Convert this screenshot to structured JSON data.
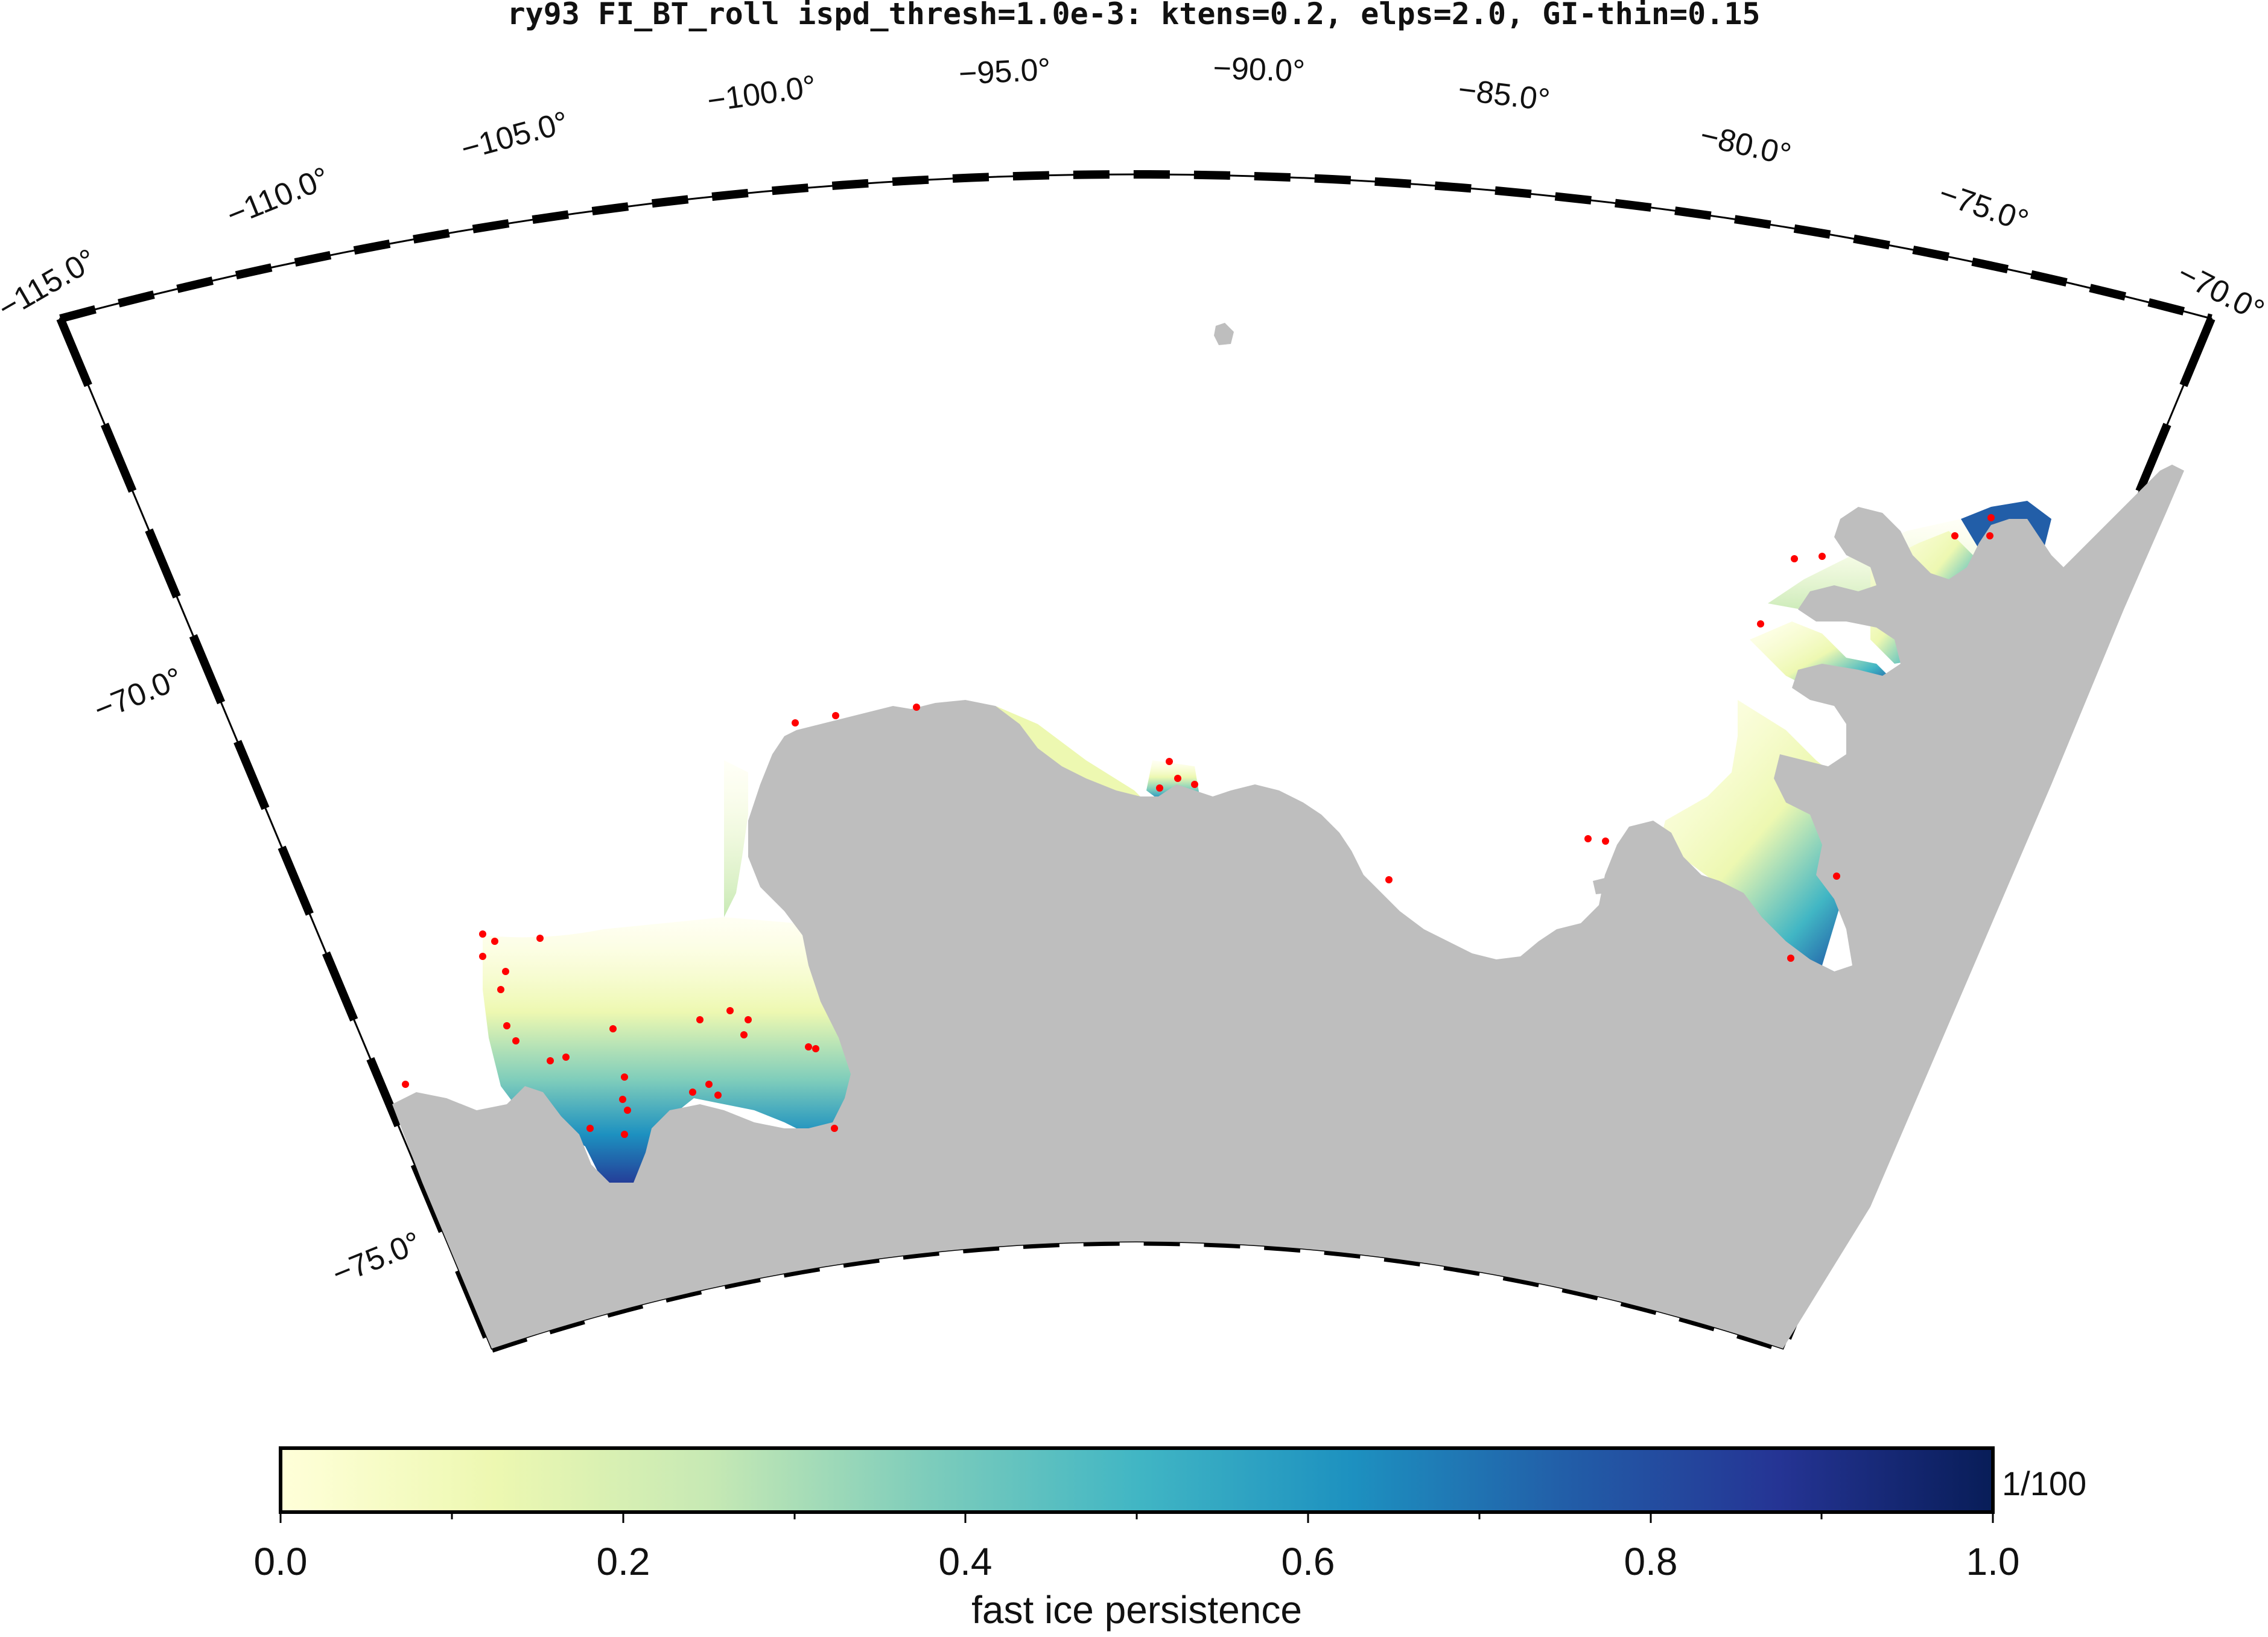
{
  "title": "ry93 FI_BT_roll ispd_thresh=1.0e-3: ktens=0.2, elps=2.0, GI-thin=0.15",
  "map": {
    "lon_labels": [
      "−115.0°",
      "−110.0°",
      "−105.0°",
      "−100.0°",
      "−95.0°",
      "−90.0°",
      "−85.0°",
      "−80.0°",
      "−75.0°",
      "−70.0°"
    ],
    "lat_labels": [
      "−70.0°",
      "−75.0°"
    ],
    "lon_range": [
      -115,
      -70
    ],
    "lat_range": [
      -66,
      -76
    ],
    "land_color": "#bebebe",
    "marker_color": "#ff0000"
  },
  "colorbar": {
    "label": "fast ice persistence",
    "unit": "1/100",
    "ticks": [
      "0.0",
      "0.2",
      "0.4",
      "0.6",
      "0.8",
      "1.0"
    ],
    "range": [
      0.0,
      1.0
    ],
    "colormap": "YlGnBu",
    "stops": [
      "#ffffd9",
      "#edf8b1",
      "#c7e9b4",
      "#7fcdbb",
      "#41b6c4",
      "#1d91c0",
      "#225ea8",
      "#253494",
      "#081d58"
    ]
  }
}
